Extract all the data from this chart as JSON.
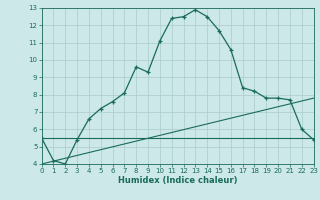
{
  "xlabel": "Humidex (Indice chaleur)",
  "background_color": "#cce8e8",
  "grid_color": "#aacccc",
  "line_color": "#1a6b5a",
  "xlim": [
    0,
    23
  ],
  "ylim": [
    4,
    13
  ],
  "xticks": [
    0,
    1,
    2,
    3,
    4,
    5,
    6,
    7,
    8,
    9,
    10,
    11,
    12,
    13,
    14,
    15,
    16,
    17,
    18,
    19,
    20,
    21,
    22,
    23
  ],
  "yticks": [
    4,
    5,
    6,
    7,
    8,
    9,
    10,
    11,
    12,
    13
  ],
  "line1_x": [
    0,
    1,
    2,
    3,
    4,
    5,
    6,
    7,
    8,
    9,
    10,
    11,
    12,
    13,
    14,
    15,
    16,
    17,
    18,
    19,
    20,
    21,
    22,
    23
  ],
  "line1_y": [
    5.5,
    4.2,
    4.0,
    5.4,
    6.6,
    7.2,
    7.6,
    8.1,
    9.6,
    9.3,
    11.1,
    12.4,
    12.5,
    12.9,
    12.5,
    11.7,
    10.6,
    8.4,
    8.2,
    7.8,
    7.8,
    7.7,
    6.0,
    5.4
  ],
  "line2_x": [
    0,
    23
  ],
  "line2_y": [
    5.5,
    5.5
  ],
  "line3_x": [
    0,
    23
  ],
  "line3_y": [
    4.0,
    7.8
  ]
}
